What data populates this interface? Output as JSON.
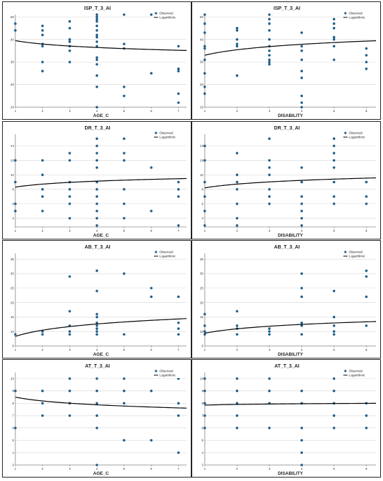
{
  "chart_data": [
    {
      "type": "scatter",
      "title": "ISP_T_3_AI",
      "xlabel": "AGE_C",
      "ylabel": "",
      "xlim": [
        1,
        7.3
      ],
      "ylim": [
        10,
        51
      ],
      "xticks": [
        1,
        2,
        3,
        4,
        5,
        6,
        7
      ],
      "yticks": [
        10,
        20,
        30,
        40,
        50
      ],
      "legend": [
        "Observed",
        "Logarithmic"
      ],
      "legend_position": "top-right",
      "grid": true,
      "points": [
        [
          1,
          47
        ],
        [
          1,
          44
        ],
        [
          2,
          46
        ],
        [
          2,
          44
        ],
        [
          2,
          42
        ],
        [
          2,
          38
        ],
        [
          2,
          37
        ],
        [
          2,
          30
        ],
        [
          2,
          26
        ],
        [
          3,
          48
        ],
        [
          3,
          45
        ],
        [
          3,
          40
        ],
        [
          3,
          39
        ],
        [
          3,
          37
        ],
        [
          3,
          35
        ],
        [
          3,
          30
        ],
        [
          4,
          51
        ],
        [
          4,
          50
        ],
        [
          4,
          49
        ],
        [
          4,
          48
        ],
        [
          4,
          46
        ],
        [
          4,
          44
        ],
        [
          4,
          42
        ],
        [
          4,
          41
        ],
        [
          4,
          39
        ],
        [
          4,
          37
        ],
        [
          4,
          32
        ],
        [
          4,
          31
        ],
        [
          4,
          29
        ],
        [
          4,
          24
        ],
        [
          4,
          19
        ],
        [
          4,
          10
        ],
        [
          5,
          51
        ],
        [
          5,
          38
        ],
        [
          5,
          36
        ],
        [
          5,
          19
        ],
        [
          5,
          15
        ],
        [
          6,
          51
        ],
        [
          6,
          25
        ],
        [
          7,
          51
        ],
        [
          7,
          37
        ],
        [
          7,
          27
        ],
        [
          7,
          26
        ],
        [
          7,
          16
        ],
        [
          7,
          12
        ]
      ],
      "fit": {
        "a": 39.5,
        "b": -2.2
      }
    },
    {
      "type": "scatter",
      "title": "ISP_T_3_AI",
      "xlabel": "DISABILITY",
      "ylabel": "",
      "xlim": [
        1,
        6.3
      ],
      "ylim": [
        10,
        51
      ],
      "xticks": [
        1,
        2,
        3,
        4,
        5,
        6
      ],
      "yticks": [
        10,
        20,
        30,
        40,
        50
      ],
      "legend": [
        "Observed",
        "Logarithmic"
      ],
      "legend_position": "top-right",
      "grid": true,
      "points": [
        [
          1,
          51
        ],
        [
          1,
          47
        ],
        [
          1,
          43
        ],
        [
          1,
          37
        ],
        [
          1,
          36
        ],
        [
          1,
          31
        ],
        [
          1,
          25
        ],
        [
          1,
          19
        ],
        [
          1,
          16
        ],
        [
          2,
          45
        ],
        [
          2,
          44
        ],
        [
          2,
          40
        ],
        [
          2,
          38
        ],
        [
          2,
          37
        ],
        [
          2,
          24
        ],
        [
          3,
          51
        ],
        [
          3,
          49
        ],
        [
          3,
          47
        ],
        [
          3,
          44
        ],
        [
          3,
          40
        ],
        [
          3,
          37
        ],
        [
          3,
          35
        ],
        [
          3,
          33
        ],
        [
          3,
          31
        ],
        [
          3,
          30
        ],
        [
          3,
          29
        ],
        [
          4,
          43
        ],
        [
          4,
          37
        ],
        [
          4,
          35
        ],
        [
          4,
          31
        ],
        [
          4,
          26
        ],
        [
          4,
          23
        ],
        [
          4,
          15
        ],
        [
          4,
          12
        ],
        [
          4,
          10
        ],
        [
          5,
          49
        ],
        [
          5,
          47
        ],
        [
          5,
          45
        ],
        [
          5,
          41
        ],
        [
          5,
          40
        ],
        [
          5,
          37
        ],
        [
          5,
          31
        ],
        [
          6,
          36
        ],
        [
          6,
          33
        ],
        [
          6,
          30
        ],
        [
          6,
          27
        ]
      ],
      "fit": {
        "a": 33.0,
        "b": 3.5
      }
    },
    {
      "type": "scatter",
      "title": "DR_T_3_AI",
      "xlabel": "AGE_C",
      "ylabel": "",
      "xlim": [
        1,
        7.3
      ],
      "ylim": [
        2.8,
        15.6
      ],
      "xticks": [
        1,
        2,
        3,
        4,
        5,
        6,
        7
      ],
      "yticks": [
        4,
        6,
        8,
        10,
        12,
        14
      ],
      "legend": [
        "Observed",
        "Logarithmic"
      ],
      "legend_position": "top-right",
      "grid": true,
      "points": [
        [
          1,
          12
        ],
        [
          1,
          9
        ],
        [
          1,
          6
        ],
        [
          1,
          5
        ],
        [
          2,
          12
        ],
        [
          2,
          10
        ],
        [
          2,
          8
        ],
        [
          2,
          7
        ],
        [
          2,
          5
        ],
        [
          3,
          13
        ],
        [
          3,
          12
        ],
        [
          3,
          9
        ],
        [
          3,
          8
        ],
        [
          3,
          7
        ],
        [
          3,
          6
        ],
        [
          3,
          4
        ],
        [
          4,
          15
        ],
        [
          4,
          14
        ],
        [
          4,
          13
        ],
        [
          4,
          12
        ],
        [
          4,
          11
        ],
        [
          4,
          9
        ],
        [
          4,
          8
        ],
        [
          4,
          7
        ],
        [
          4,
          6
        ],
        [
          4,
          5
        ],
        [
          4,
          4
        ],
        [
          4,
          3
        ],
        [
          5,
          15
        ],
        [
          5,
          13
        ],
        [
          5,
          12
        ],
        [
          5,
          8
        ],
        [
          5,
          6
        ],
        [
          5,
          4
        ],
        [
          6,
          11
        ],
        [
          6,
          5
        ],
        [
          7,
          15
        ],
        [
          7,
          9
        ],
        [
          7,
          8
        ],
        [
          7,
          7
        ],
        [
          7,
          3
        ]
      ],
      "fit": {
        "a": 8.3,
        "b": 0.6
      }
    },
    {
      "type": "scatter",
      "title": "DR_T_3_AI",
      "xlabel": "DISABILITY",
      "ylabel": "",
      "xlim": [
        1,
        6.3
      ],
      "ylim": [
        2.8,
        15.6
      ],
      "xticks": [
        1,
        2,
        3,
        4,
        5,
        6
      ],
      "yticks": [
        4,
        6,
        8,
        10,
        12,
        14
      ],
      "legend": [
        "Observed",
        "Logarithmic"
      ],
      "legend_position": "top-right",
      "grid": true,
      "points": [
        [
          1,
          14
        ],
        [
          1,
          12
        ],
        [
          1,
          9
        ],
        [
          1,
          7
        ],
        [
          1,
          5
        ],
        [
          1,
          3
        ],
        [
          2,
          13
        ],
        [
          2,
          10
        ],
        [
          2,
          9
        ],
        [
          2,
          8
        ],
        [
          2,
          6
        ],
        [
          2,
          4
        ],
        [
          2,
          3
        ],
        [
          3,
          15
        ],
        [
          3,
          12
        ],
        [
          3,
          11
        ],
        [
          3,
          10
        ],
        [
          3,
          8
        ],
        [
          3,
          7
        ],
        [
          3,
          6
        ],
        [
          4,
          11
        ],
        [
          4,
          9
        ],
        [
          4,
          7
        ],
        [
          4,
          6
        ],
        [
          4,
          5
        ],
        [
          4,
          4
        ],
        [
          4,
          3
        ],
        [
          5,
          15
        ],
        [
          5,
          14
        ],
        [
          5,
          13
        ],
        [
          5,
          12
        ],
        [
          5,
          11
        ],
        [
          5,
          9
        ],
        [
          5,
          7
        ],
        [
          5,
          6
        ],
        [
          6,
          9
        ],
        [
          6,
          7
        ],
        [
          6,
          6
        ]
      ],
      "fit": {
        "a": 8.2,
        "b": 0.75
      }
    },
    {
      "type": "scatter",
      "title": "AB_T_3_AI",
      "xlabel": "AGE_C",
      "ylabel": "",
      "xlim": [
        1,
        7.3
      ],
      "ylim": [
        5,
        37
      ],
      "xticks": [
        1,
        2,
        3,
        4,
        5,
        6,
        7
      ],
      "yticks": [
        5,
        10,
        15,
        20,
        25,
        30,
        35
      ],
      "legend": [
        "Observed",
        "Logarithmic"
      ],
      "legend_position": "top-right",
      "grid": true,
      "points": [
        [
          1,
          9
        ],
        [
          2,
          10
        ],
        [
          2,
          9
        ],
        [
          3,
          29
        ],
        [
          3,
          17
        ],
        [
          3,
          12
        ],
        [
          3,
          10
        ],
        [
          3,
          9
        ],
        [
          4,
          31
        ],
        [
          4,
          24
        ],
        [
          4,
          16
        ],
        [
          4,
          15
        ],
        [
          4,
          13
        ],
        [
          4,
          12
        ],
        [
          4,
          11
        ],
        [
          4,
          10
        ],
        [
          4,
          9
        ],
        [
          5,
          30
        ],
        [
          5,
          9
        ],
        [
          6,
          25
        ],
        [
          6,
          22
        ],
        [
          7,
          22
        ],
        [
          7,
          13
        ],
        [
          7,
          11
        ],
        [
          7,
          9
        ]
      ],
      "fit": {
        "a": 8.3,
        "b": 3.1
      }
    },
    {
      "type": "scatter",
      "title": "AB_T_3_AI",
      "xlabel": "DISABILITY",
      "ylabel": "",
      "xlim": [
        1,
        6.3
      ],
      "ylim": [
        5,
        37
      ],
      "xticks": [
        1,
        2,
        3,
        4,
        5,
        6
      ],
      "yticks": [
        5,
        10,
        15,
        20,
        25,
        30,
        35
      ],
      "legend": [
        "Observed",
        "Logarithmic"
      ],
      "legend_position": "top-right",
      "grid": true,
      "points": [
        [
          1,
          16
        ],
        [
          1,
          12
        ],
        [
          1,
          10
        ],
        [
          1,
          9
        ],
        [
          2,
          17
        ],
        [
          2,
          12
        ],
        [
          2,
          11
        ],
        [
          2,
          9
        ],
        [
          3,
          11
        ],
        [
          3,
          10
        ],
        [
          3,
          9
        ],
        [
          4,
          30
        ],
        [
          4,
          25
        ],
        [
          4,
          22
        ],
        [
          4,
          13
        ],
        [
          4,
          12
        ],
        [
          4,
          9
        ],
        [
          5,
          24
        ],
        [
          5,
          15
        ],
        [
          5,
          12
        ],
        [
          5,
          10
        ],
        [
          5,
          9
        ],
        [
          6,
          31
        ],
        [
          6,
          29
        ],
        [
          6,
          22
        ],
        [
          6,
          12
        ]
      ],
      "fit": {
        "a": 9.4,
        "b": 2.2
      }
    },
    {
      "type": "scatter",
      "title": "AT_T_3_AI",
      "xlabel": "AGE_C",
      "ylabel": "",
      "xlim": [
        1,
        7.3
      ],
      "ylim": [
        3,
        10.5
      ],
      "xticks": [
        1,
        2,
        3,
        4,
        5,
        6,
        7
      ],
      "yticks": [
        3,
        4,
        5,
        6,
        7,
        8,
        9,
        10
      ],
      "legend": [
        "Observed",
        "Logarithmic"
      ],
      "legend_position": "top-right",
      "grid": true,
      "points": [
        [
          1,
          9
        ],
        [
          1,
          6
        ],
        [
          2,
          9
        ],
        [
          2,
          8
        ],
        [
          2,
          7
        ],
        [
          3,
          10
        ],
        [
          3,
          9
        ],
        [
          3,
          8
        ],
        [
          3,
          7
        ],
        [
          4,
          10
        ],
        [
          4,
          9
        ],
        [
          4,
          8
        ],
        [
          4,
          7
        ],
        [
          4,
          6
        ],
        [
          4,
          3
        ],
        [
          5,
          10
        ],
        [
          5,
          9
        ],
        [
          5,
          8
        ],
        [
          5,
          5
        ],
        [
          6,
          9
        ],
        [
          6,
          5
        ],
        [
          7,
          10
        ],
        [
          7,
          8
        ],
        [
          7,
          7
        ],
        [
          7,
          4
        ]
      ],
      "fit": {
        "a": 8.5,
        "b": -0.45
      }
    },
    {
      "type": "scatter",
      "title": "AT_T_3_AI",
      "xlabel": "DISABILITY",
      "ylabel": "",
      "xlim": [
        1,
        6.3
      ],
      "ylim": [
        3,
        10.5
      ],
      "xticks": [
        1,
        2,
        3,
        4,
        5,
        6
      ],
      "yticks": [
        3,
        4,
        5,
        6,
        7,
        8,
        9,
        10
      ],
      "legend": [
        "Observed",
        "Logarithmic"
      ],
      "legend_position": "top-right",
      "grid": true,
      "points": [
        [
          1,
          10
        ],
        [
          1,
          9
        ],
        [
          1,
          8
        ],
        [
          1,
          7
        ],
        [
          1,
          6
        ],
        [
          2,
          10
        ],
        [
          2,
          9
        ],
        [
          2,
          8
        ],
        [
          2,
          7
        ],
        [
          2,
          6
        ],
        [
          3,
          10
        ],
        [
          3,
          9
        ],
        [
          3,
          8
        ],
        [
          3,
          6
        ],
        [
          4,
          9
        ],
        [
          4,
          8
        ],
        [
          4,
          6
        ],
        [
          4,
          5
        ],
        [
          4,
          4
        ],
        [
          4,
          3
        ],
        [
          5,
          10
        ],
        [
          5,
          9
        ],
        [
          5,
          8
        ],
        [
          5,
          7
        ],
        [
          5,
          6
        ],
        [
          6,
          8
        ],
        [
          6,
          7
        ],
        [
          6,
          6
        ]
      ],
      "fit": {
        "a": 7.85,
        "b": 0.08
      }
    }
  ],
  "colors": {
    "point": "#1f5f8b",
    "fit": "#000000",
    "grid": "#d6d6d6"
  }
}
